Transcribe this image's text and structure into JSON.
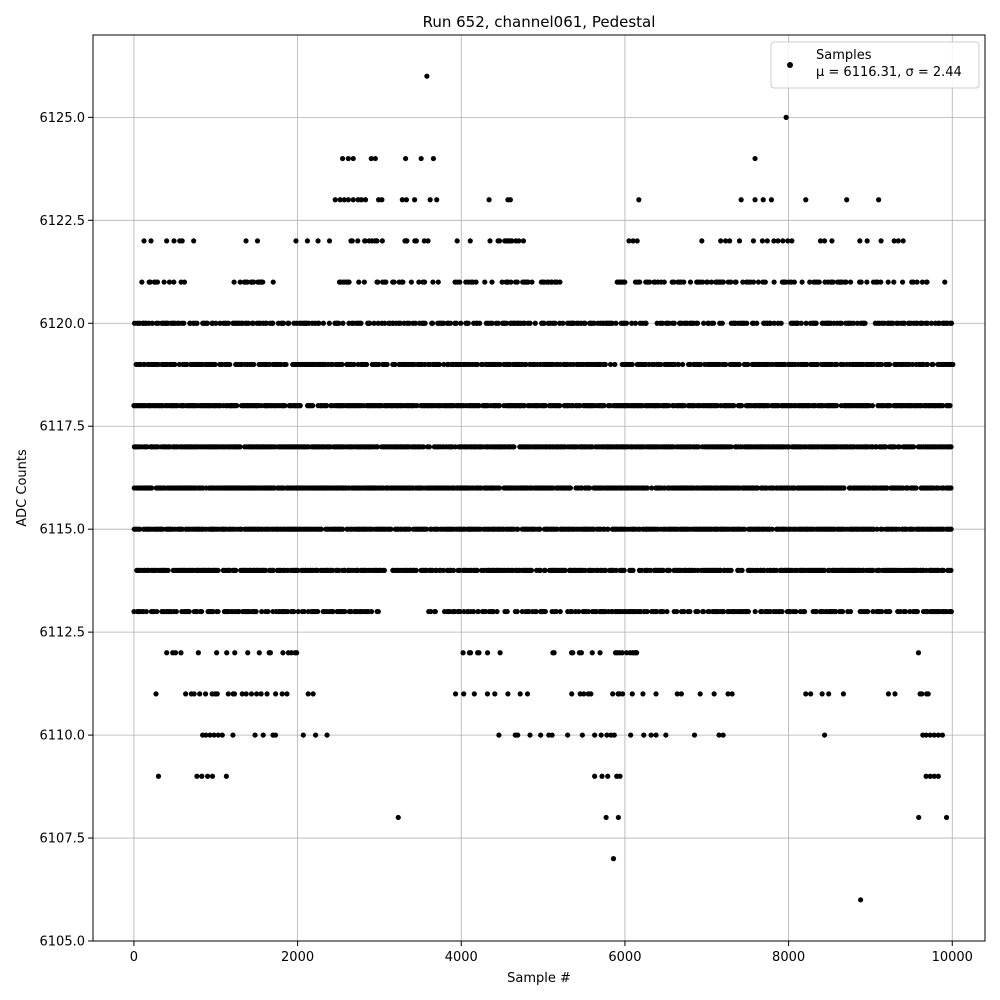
{
  "chart_data": {
    "type": "scatter",
    "title": "Run 652, channel061, Pedestal",
    "xlabel": "Sample #",
    "ylabel": "ADC Counts",
    "xlim": [
      -500,
      10400
    ],
    "ylim": [
      6105.0,
      6127.0
    ],
    "xticks": [
      0,
      2000,
      4000,
      6000,
      8000,
      10000
    ],
    "yticks": [
      6105.0,
      6107.5,
      6110.0,
      6112.5,
      6115.0,
      6117.5,
      6120.0,
      6122.5,
      6125.0
    ],
    "xtick_labels": [
      "0",
      "2000",
      "4000",
      "6000",
      "8000",
      "10000"
    ],
    "ytick_labels": [
      "6105.0",
      "6107.5",
      "6110.0",
      "6112.5",
      "6115.0",
      "6117.5",
      "6120.0",
      "6122.5",
      "6125.0"
    ],
    "grid": true,
    "legend": {
      "position": "top-right",
      "label": "Samples",
      "stats": "μ = 6116.31, σ = 2.44"
    },
    "marker_color": "#000000",
    "series": [
      {
        "name": "Samples",
        "sample_range": [
          0,
          9999
        ],
        "levels": [
          {
            "y": 6113,
            "x_ranges": [
              [
                0,
                3000
              ],
              [
                3600,
                9999
              ]
            ],
            "density": 0.55
          },
          {
            "y": 6114,
            "x_ranges": [
              [
                0,
                9999
              ]
            ],
            "density": 0.75
          },
          {
            "y": 6115,
            "x_ranges": [
              [
                0,
                9999
              ]
            ],
            "density": 0.85
          },
          {
            "y": 6116,
            "x_ranges": [
              [
                0,
                9999
              ]
            ],
            "density": 0.85
          },
          {
            "y": 6117,
            "x_ranges": [
              [
                0,
                9999
              ]
            ],
            "density": 0.85
          },
          {
            "y": 6118,
            "x_ranges": [
              [
                0,
                9999
              ]
            ],
            "density": 0.8
          },
          {
            "y": 6119,
            "x_ranges": [
              [
                0,
                5900
              ],
              [
                5950,
                9999
              ]
            ],
            "density": 0.7
          },
          {
            "y": 6120,
            "x_ranges": [
              [
                0,
                9999
              ]
            ],
            "density": 0.55
          },
          {
            "y": 6121,
            "x_ranges": [
              [
                80,
                700
              ],
              [
                1200,
                1900
              ],
              [
                2500,
                3800
              ],
              [
                3900,
                5400
              ],
              [
                5900,
                9400
              ],
              [
                9500,
                9900
              ]
            ],
            "density": 0.35
          },
          {
            "y": 6122,
            "x_ranges": [
              [
                80,
                250
              ],
              [
                2600,
                3100
              ],
              [
                3300,
                3700
              ],
              [
                4300,
                4800
              ]
            ],
            "density": 0.3
          },
          {
            "y": 6112,
            "x_ranges": [
              [
                250,
                2200
              ],
              [
                4000,
                4500
              ],
              [
                5100,
                6200
              ],
              [
                9500,
                9950
              ]
            ],
            "density": 0.2
          },
          {
            "y": 6111,
            "x_ranges": [
              [
                600,
                1800
              ],
              [
                5400,
                6000
              ],
              [
                9600,
                9900
              ]
            ],
            "density": 0.2
          }
        ],
        "points": [
          {
            "x": 3580,
            "y": 6126
          },
          {
            "x": 7970,
            "y": 6125
          },
          {
            "x": 2550,
            "y": 6124
          },
          {
            "x": 2620,
            "y": 6124
          },
          {
            "x": 2680,
            "y": 6124
          },
          {
            "x": 2900,
            "y": 6124
          },
          {
            "x": 2950,
            "y": 6124
          },
          {
            "x": 3320,
            "y": 6124
          },
          {
            "x": 3510,
            "y": 6124
          },
          {
            "x": 3660,
            "y": 6124
          },
          {
            "x": 7590,
            "y": 6124
          },
          {
            "x": 2460,
            "y": 6123
          },
          {
            "x": 2520,
            "y": 6123
          },
          {
            "x": 2570,
            "y": 6123
          },
          {
            "x": 2620,
            "y": 6123
          },
          {
            "x": 2680,
            "y": 6123
          },
          {
            "x": 2740,
            "y": 6123
          },
          {
            "x": 2780,
            "y": 6123
          },
          {
            "x": 2830,
            "y": 6123
          },
          {
            "x": 2990,
            "y": 6123
          },
          {
            "x": 3030,
            "y": 6123
          },
          {
            "x": 3280,
            "y": 6123
          },
          {
            "x": 3330,
            "y": 6123
          },
          {
            "x": 3430,
            "y": 6123
          },
          {
            "x": 3620,
            "y": 6123
          },
          {
            "x": 3700,
            "y": 6123
          },
          {
            "x": 4340,
            "y": 6123
          },
          {
            "x": 4570,
            "y": 6123
          },
          {
            "x": 4600,
            "y": 6123
          },
          {
            "x": 6170,
            "y": 6123
          },
          {
            "x": 7420,
            "y": 6123
          },
          {
            "x": 7590,
            "y": 6123
          },
          {
            "x": 7690,
            "y": 6123
          },
          {
            "x": 7790,
            "y": 6123
          },
          {
            "x": 8210,
            "y": 6123
          },
          {
            "x": 8710,
            "y": 6123
          },
          {
            "x": 9100,
            "y": 6123
          },
          {
            "x": 400,
            "y": 6122
          },
          {
            "x": 490,
            "y": 6122
          },
          {
            "x": 560,
            "y": 6122
          },
          {
            "x": 590,
            "y": 6122
          },
          {
            "x": 730,
            "y": 6122
          },
          {
            "x": 1370,
            "y": 6122
          },
          {
            "x": 1510,
            "y": 6122
          },
          {
            "x": 1980,
            "y": 6122
          },
          {
            "x": 2120,
            "y": 6122
          },
          {
            "x": 2250,
            "y": 6122
          },
          {
            "x": 2390,
            "y": 6122
          },
          {
            "x": 3950,
            "y": 6122
          },
          {
            "x": 4110,
            "y": 6122
          },
          {
            "x": 6050,
            "y": 6122
          },
          {
            "x": 6100,
            "y": 6122
          },
          {
            "x": 6150,
            "y": 6122
          },
          {
            "x": 6940,
            "y": 6122
          },
          {
            "x": 7170,
            "y": 6122
          },
          {
            "x": 7230,
            "y": 6122
          },
          {
            "x": 7280,
            "y": 6122
          },
          {
            "x": 7400,
            "y": 6122
          },
          {
            "x": 7570,
            "y": 6122
          },
          {
            "x": 7680,
            "y": 6122
          },
          {
            "x": 7740,
            "y": 6122
          },
          {
            "x": 7820,
            "y": 6122
          },
          {
            "x": 7870,
            "y": 6122
          },
          {
            "x": 7930,
            "y": 6122
          },
          {
            "x": 7990,
            "y": 6122
          },
          {
            "x": 8040,
            "y": 6122
          },
          {
            "x": 8390,
            "y": 6122
          },
          {
            "x": 8440,
            "y": 6122
          },
          {
            "x": 8530,
            "y": 6122
          },
          {
            "x": 8870,
            "y": 6122
          },
          {
            "x": 8960,
            "y": 6122
          },
          {
            "x": 9130,
            "y": 6122
          },
          {
            "x": 9290,
            "y": 6122
          },
          {
            "x": 9340,
            "y": 6122
          },
          {
            "x": 9400,
            "y": 6122
          },
          {
            "x": 270,
            "y": 6111
          },
          {
            "x": 1870,
            "y": 6111
          },
          {
            "x": 2130,
            "y": 6111
          },
          {
            "x": 2190,
            "y": 6111
          },
          {
            "x": 3930,
            "y": 6111
          },
          {
            "x": 4030,
            "y": 6111
          },
          {
            "x": 4160,
            "y": 6111
          },
          {
            "x": 4320,
            "y": 6111
          },
          {
            "x": 4410,
            "y": 6111
          },
          {
            "x": 4570,
            "y": 6111
          },
          {
            "x": 4720,
            "y": 6111
          },
          {
            "x": 4810,
            "y": 6111
          },
          {
            "x": 5350,
            "y": 6111
          },
          {
            "x": 6090,
            "y": 6111
          },
          {
            "x": 6220,
            "y": 6111
          },
          {
            "x": 6380,
            "y": 6111
          },
          {
            "x": 6640,
            "y": 6111
          },
          {
            "x": 6690,
            "y": 6111
          },
          {
            "x": 6920,
            "y": 6111
          },
          {
            "x": 7090,
            "y": 6111
          },
          {
            "x": 7260,
            "y": 6111
          },
          {
            "x": 7310,
            "y": 6111
          },
          {
            "x": 8210,
            "y": 6111
          },
          {
            "x": 8270,
            "y": 6111
          },
          {
            "x": 8410,
            "y": 6111
          },
          {
            "x": 8490,
            "y": 6111
          },
          {
            "x": 8670,
            "y": 6111
          },
          {
            "x": 9220,
            "y": 6111
          },
          {
            "x": 9300,
            "y": 6111
          },
          {
            "x": 840,
            "y": 6110
          },
          {
            "x": 880,
            "y": 6110
          },
          {
            "x": 930,
            "y": 6110
          },
          {
            "x": 980,
            "y": 6110
          },
          {
            "x": 1030,
            "y": 6110
          },
          {
            "x": 1080,
            "y": 6110
          },
          {
            "x": 1210,
            "y": 6110
          },
          {
            "x": 1480,
            "y": 6110
          },
          {
            "x": 1580,
            "y": 6110
          },
          {
            "x": 1700,
            "y": 6110
          },
          {
            "x": 1730,
            "y": 6110
          },
          {
            "x": 2070,
            "y": 6110
          },
          {
            "x": 2220,
            "y": 6110
          },
          {
            "x": 2360,
            "y": 6110
          },
          {
            "x": 4460,
            "y": 6110
          },
          {
            "x": 4660,
            "y": 6110
          },
          {
            "x": 4690,
            "y": 6110
          },
          {
            "x": 4840,
            "y": 6110
          },
          {
            "x": 4970,
            "y": 6110
          },
          {
            "x": 5070,
            "y": 6110
          },
          {
            "x": 5110,
            "y": 6110
          },
          {
            "x": 5300,
            "y": 6110
          },
          {
            "x": 5480,
            "y": 6110
          },
          {
            "x": 5630,
            "y": 6110
          },
          {
            "x": 5710,
            "y": 6110
          },
          {
            "x": 5780,
            "y": 6110
          },
          {
            "x": 5830,
            "y": 6110
          },
          {
            "x": 5870,
            "y": 6110
          },
          {
            "x": 6070,
            "y": 6110
          },
          {
            "x": 6230,
            "y": 6110
          },
          {
            "x": 6320,
            "y": 6110
          },
          {
            "x": 6380,
            "y": 6110
          },
          {
            "x": 6500,
            "y": 6110
          },
          {
            "x": 6850,
            "y": 6110
          },
          {
            "x": 7150,
            "y": 6110
          },
          {
            "x": 7200,
            "y": 6110
          },
          {
            "x": 8440,
            "y": 6110
          },
          {
            "x": 9640,
            "y": 6110
          },
          {
            "x": 9680,
            "y": 6110
          },
          {
            "x": 9730,
            "y": 6110
          },
          {
            "x": 9780,
            "y": 6110
          },
          {
            "x": 9830,
            "y": 6110
          },
          {
            "x": 9880,
            "y": 6110
          },
          {
            "x": 300,
            "y": 6109
          },
          {
            "x": 770,
            "y": 6109
          },
          {
            "x": 830,
            "y": 6109
          },
          {
            "x": 900,
            "y": 6109
          },
          {
            "x": 960,
            "y": 6109
          },
          {
            "x": 1130,
            "y": 6109
          },
          {
            "x": 5630,
            "y": 6109
          },
          {
            "x": 5720,
            "y": 6109
          },
          {
            "x": 5790,
            "y": 6109
          },
          {
            "x": 5900,
            "y": 6109
          },
          {
            "x": 5940,
            "y": 6109
          },
          {
            "x": 9680,
            "y": 6109
          },
          {
            "x": 9730,
            "y": 6109
          },
          {
            "x": 9780,
            "y": 6109
          },
          {
            "x": 9830,
            "y": 6109
          },
          {
            "x": 3230,
            "y": 6108
          },
          {
            "x": 5770,
            "y": 6108
          },
          {
            "x": 5920,
            "y": 6108
          },
          {
            "x": 9590,
            "y": 6108
          },
          {
            "x": 9930,
            "y": 6108
          },
          {
            "x": 5860,
            "y": 6107
          },
          {
            "x": 8880,
            "y": 6106
          }
        ]
      }
    ]
  }
}
